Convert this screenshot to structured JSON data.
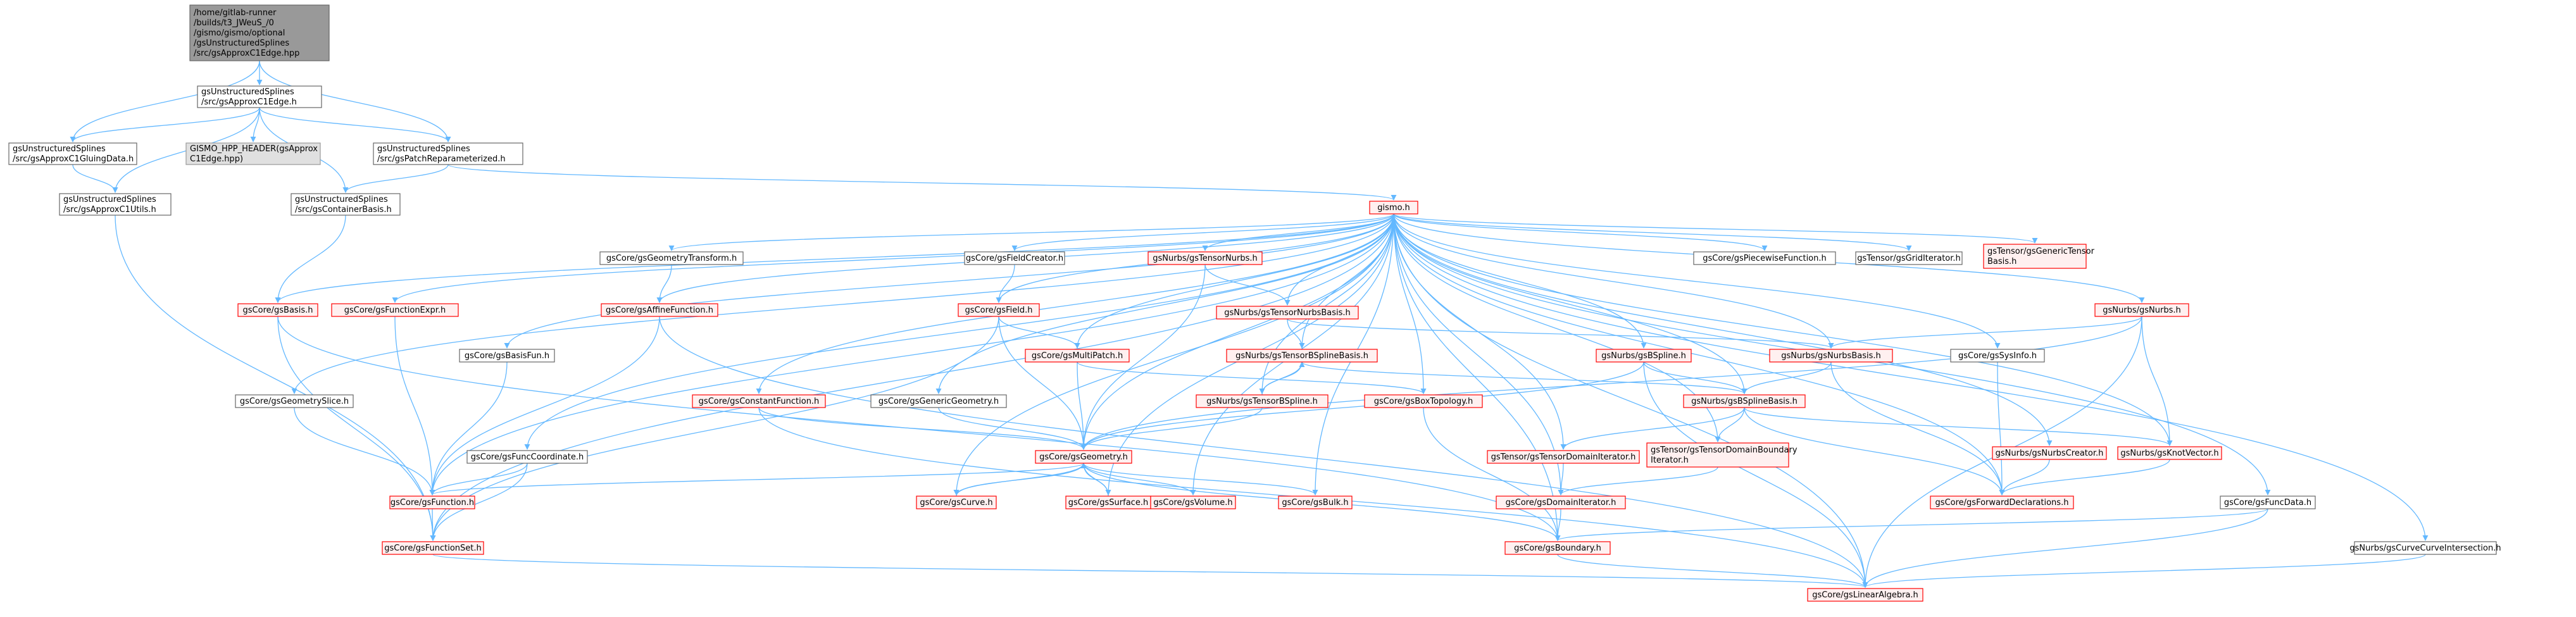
{
  "colors": {
    "edge": "#63b8ff",
    "root_fill": "#999999",
    "root_stroke": "#666666",
    "doc_fill": "#ffffff",
    "doc_stroke": "#666666",
    "missing_fill": "#fff0f0",
    "missing_stroke": "#ff0000",
    "gray_fill": "#e0e0e0",
    "gray_stroke": "#999999",
    "text": "#000000"
  },
  "nodes": [
    {
      "id": "root",
      "kind": "root",
      "lines": [
        "/home/gitlab-runner",
        "/builds/t3_JWeuS_/0",
        "/gismo/gismo/optional",
        "/gsUnstructuredSplines",
        "/src/gsApproxC1Edge.hpp"
      ]
    },
    {
      "id": "n_edge_h",
      "kind": "doc",
      "lines": [
        "gsUnstructuredSplines",
        "/src/gsApproxC1Edge.h"
      ]
    },
    {
      "id": "n_gluing",
      "kind": "doc",
      "lines": [
        "gsUnstructuredSplines",
        "/src/gsApproxC1GluingData.h"
      ]
    },
    {
      "id": "n_gismo_hpp",
      "kind": "gray",
      "lines": [
        "GISMO_HPP_HEADER(gsApprox",
        "C1Edge.hpp)"
      ]
    },
    {
      "id": "n_patchrep",
      "kind": "doc",
      "lines": [
        "gsUnstructuredSplines",
        "/src/gsPatchReparameterized.h"
      ]
    },
    {
      "id": "n_utils",
      "kind": "doc",
      "lines": [
        "gsUnstructuredSplines",
        "/src/gsApproxC1Utils.h"
      ]
    },
    {
      "id": "n_contbasis",
      "kind": "doc",
      "lines": [
        "gsUnstructuredSplines",
        "/src/gsContainerBasis.h"
      ]
    },
    {
      "id": "n_gismo",
      "kind": "missing",
      "lines": [
        "gismo.h"
      ]
    },
    {
      "id": "n_geomtransform",
      "kind": "doc",
      "lines": [
        "gsCore/gsGeometryTransform.h"
      ]
    },
    {
      "id": "n_fieldcreator",
      "kind": "doc",
      "lines": [
        "gsCore/gsFieldCreator.h"
      ]
    },
    {
      "id": "n_tensornurbs",
      "kind": "missing",
      "lines": [
        "gsNurbs/gsTensorNurbs.h"
      ]
    },
    {
      "id": "n_piecewise",
      "kind": "doc",
      "lines": [
        "gsCore/gsPiecewiseFunction.h"
      ]
    },
    {
      "id": "n_griditer",
      "kind": "doc",
      "lines": [
        "gsTensor/gsGridIterator.h"
      ]
    },
    {
      "id": "n_gentensor",
      "kind": "missing",
      "lines": [
        "gsTensor/gsGenericTensor",
        "Basis.h"
      ]
    },
    {
      "id": "n_basis",
      "kind": "missing",
      "lines": [
        "gsCore/gsBasis.h"
      ]
    },
    {
      "id": "n_funcexpr",
      "kind": "missing",
      "lines": [
        "gsCore/gsFunctionExpr.h"
      ]
    },
    {
      "id": "n_affine",
      "kind": "missing",
      "lines": [
        "gsCore/gsAffineFunction.h"
      ]
    },
    {
      "id": "n_field",
      "kind": "missing",
      "lines": [
        "gsCore/gsField.h"
      ]
    },
    {
      "id": "n_tensornurbsbasis",
      "kind": "missing",
      "lines": [
        "gsNurbs/gsTensorNurbsBasis.h"
      ]
    },
    {
      "id": "n_nurbs",
      "kind": "missing",
      "lines": [
        "gsNurbs/gsNurbs.h"
      ]
    },
    {
      "id": "n_basisfun",
      "kind": "doc",
      "lines": [
        "gsCore/gsBasisFun.h"
      ]
    },
    {
      "id": "n_multipatch",
      "kind": "missing",
      "lines": [
        "gsCore/gsMultiPatch.h"
      ]
    },
    {
      "id": "n_tensorbsplinebasis",
      "kind": "missing",
      "lines": [
        "gsNurbs/gsTensorBSplineBasis.h"
      ]
    },
    {
      "id": "n_bspline",
      "kind": "missing",
      "lines": [
        "gsNurbs/gsBSpline.h"
      ]
    },
    {
      "id": "n_nurbsbasis",
      "kind": "missing",
      "lines": [
        "gsNurbs/gsNurbsBasis.h"
      ]
    },
    {
      "id": "n_sysinfo",
      "kind": "doc",
      "lines": [
        "gsCore/gsSysInfo.h"
      ]
    },
    {
      "id": "n_geomslice",
      "kind": "doc",
      "lines": [
        "gsCore/gsGeometrySlice.h"
      ]
    },
    {
      "id": "n_constfunc",
      "kind": "missing",
      "lines": [
        "gsCore/gsConstantFunction.h"
      ]
    },
    {
      "id": "n_genericgeom",
      "kind": "doc",
      "lines": [
        "gsCore/gsGenericGeometry.h"
      ]
    },
    {
      "id": "n_tensorbspline",
      "kind": "missing",
      "lines": [
        "gsNurbs/gsTensorBSpline.h"
      ]
    },
    {
      "id": "n_boxtopo",
      "kind": "missing",
      "lines": [
        "gsCore/gsBoxTopology.h"
      ]
    },
    {
      "id": "n_bsplinebasis",
      "kind": "missing",
      "lines": [
        "gsNurbs/gsBSplineBasis.h"
      ]
    },
    {
      "id": "n_funccoord",
      "kind": "doc",
      "lines": [
        "gsCore/gsFuncCoordinate.h"
      ]
    },
    {
      "id": "n_geometry",
      "kind": "missing",
      "lines": [
        "gsCore/gsGeometry.h"
      ]
    },
    {
      "id": "n_tensordomiter",
      "kind": "missing",
      "lines": [
        "gsTensor/gsTensorDomainIterator.h"
      ]
    },
    {
      "id": "n_tensordombound",
      "kind": "missing",
      "lines": [
        "gsTensor/gsTensorDomainBoundary",
        "Iterator.h"
      ]
    },
    {
      "id": "n_nurbscreator",
      "kind": "missing",
      "lines": [
        "gsNurbs/gsNurbsCreator.h"
      ]
    },
    {
      "id": "n_knotvector",
      "kind": "missing",
      "lines": [
        "gsNurbs/gsKnotVector.h"
      ]
    },
    {
      "id": "n_function",
      "kind": "missing",
      "lines": [
        "gsCore/gsFunction.h"
      ]
    },
    {
      "id": "n_curve",
      "kind": "missing",
      "lines": [
        "gsCore/gsCurve.h"
      ]
    },
    {
      "id": "n_surface",
      "kind": "missing",
      "lines": [
        "gsCore/gsSurface.h"
      ]
    },
    {
      "id": "n_volume",
      "kind": "missing",
      "lines": [
        "gsCore/gsVolume.h"
      ]
    },
    {
      "id": "n_bulk",
      "kind": "missing",
      "lines": [
        "gsCore/gsBulk.h"
      ]
    },
    {
      "id": "n_domiter",
      "kind": "missing",
      "lines": [
        "gsCore/gsDomainIterator.h"
      ]
    },
    {
      "id": "n_fwddecl",
      "kind": "missing",
      "lines": [
        "gsCore/gsForwardDeclarations.h"
      ]
    },
    {
      "id": "n_funcdata",
      "kind": "doc",
      "lines": [
        "gsCore/gsFuncData.h"
      ]
    },
    {
      "id": "n_funcset",
      "kind": "missing",
      "lines": [
        "gsCore/gsFunctionSet.h"
      ]
    },
    {
      "id": "n_boundary",
      "kind": "missing",
      "lines": [
        "gsCore/gsBoundary.h"
      ]
    },
    {
      "id": "n_curvecurve",
      "kind": "doc",
      "lines": [
        "gsNurbs/gsCurveCurveIntersection.h"
      ]
    },
    {
      "id": "n_linalg",
      "kind": "missing",
      "lines": [
        "gsCore/gsLinearAlgebra.h"
      ]
    }
  ]
}
